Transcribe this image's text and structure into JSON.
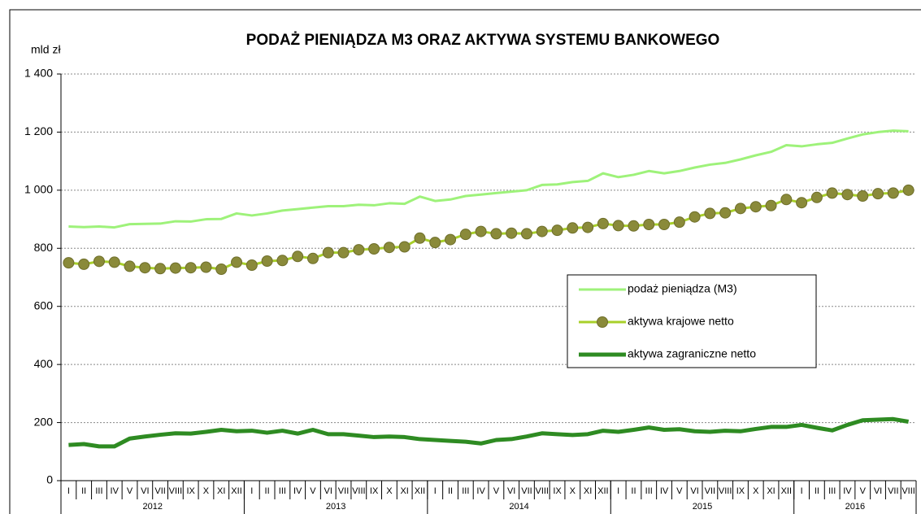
{
  "chart_data": {
    "type": "line",
    "title": "PODAŻ PIENIĄDZA M3 ORAZ AKTYWA SYSTEMU BANKOWEGO",
    "y_label": "mld zł",
    "categories": [
      "I",
      "II",
      "III",
      "IV",
      "V",
      "VI",
      "VII",
      "VIII",
      "IX",
      "X",
      "XI",
      "XII",
      "I",
      "II",
      "III",
      "IV",
      "V",
      "VI",
      "VII",
      "VIII",
      "IX",
      "X",
      "XI",
      "XII",
      "I",
      "II",
      "III",
      "IV",
      "V",
      "VI",
      "VII",
      "VIII",
      "IX",
      "X",
      "XI",
      "XII",
      "I",
      "II",
      "III",
      "IV",
      "V",
      "VI",
      "VII",
      "VIII",
      "IX",
      "X",
      "XI",
      "XII",
      "I",
      "II",
      "III",
      "IV",
      "V",
      "VI",
      "VII",
      "VIII"
    ],
    "year_groups": [
      {
        "label": "2012",
        "months": 12
      },
      {
        "label": "2013",
        "months": 12
      },
      {
        "label": "2014",
        "months": 12
      },
      {
        "label": "2015",
        "months": 12
      },
      {
        "label": "2016",
        "months": 8
      }
    ],
    "series": [
      {
        "name": "podaż pieniądza (M3)",
        "color": "#9ef27a",
        "width": 3,
        "markers": false,
        "values": [
          875,
          873,
          875,
          872,
          883,
          884,
          885,
          893,
          892,
          900,
          901,
          920,
          913,
          920,
          930,
          935,
          940,
          945,
          945,
          950,
          948,
          955,
          953,
          978,
          963,
          968,
          980,
          985,
          990,
          995,
          1000,
          1018,
          1020,
          1028,
          1032,
          1058,
          1045,
          1053,
          1066,
          1058,
          1066,
          1078,
          1088,
          1094,
          1106,
          1120,
          1132,
          1155,
          1151,
          1158,
          1163,
          1178,
          1192,
          1200,
          1205,
          1203
        ]
      },
      {
        "name": "aktywa krajowe netto",
        "color": "#a8d02a",
        "marker_color": "#8a8a3a",
        "width": 3,
        "markers": true,
        "values": [
          750,
          745,
          755,
          752,
          738,
          733,
          730,
          732,
          733,
          735,
          728,
          752,
          742,
          756,
          758,
          772,
          765,
          785,
          785,
          795,
          798,
          803,
          805,
          835,
          820,
          830,
          848,
          858,
          850,
          852,
          850,
          858,
          862,
          870,
          872,
          885,
          878,
          877,
          882,
          882,
          890,
          908,
          920,
          922,
          937,
          943,
          947,
          968,
          957,
          975,
          990,
          985,
          980,
          988,
          990,
          1000
        ]
      },
      {
        "name": "aktywa zagraniczne netto",
        "color": "#2e8b22",
        "width": 5,
        "markers": false,
        "values": [
          123,
          126,
          118,
          118,
          145,
          152,
          158,
          163,
          162,
          168,
          175,
          170,
          172,
          165,
          172,
          162,
          175,
          160,
          160,
          155,
          150,
          152,
          150,
          143,
          140,
          137,
          134,
          128,
          140,
          143,
          152,
          163,
          160,
          157,
          160,
          172,
          168,
          175,
          183,
          175,
          177,
          170,
          168,
          172,
          170,
          178,
          185,
          185,
          192,
          182,
          173,
          192,
          208,
          210,
          212,
          203
        ]
      }
    ],
    "ylim": [
      0,
      1400
    ],
    "yticks": [
      0,
      200,
      400,
      600,
      800,
      {
        "value": 1000,
        "label": "1 000"
      },
      {
        "value": 1200,
        "label": "1 200"
      },
      {
        "value": 1400,
        "label": "1 400"
      }
    ],
    "grid": true
  }
}
